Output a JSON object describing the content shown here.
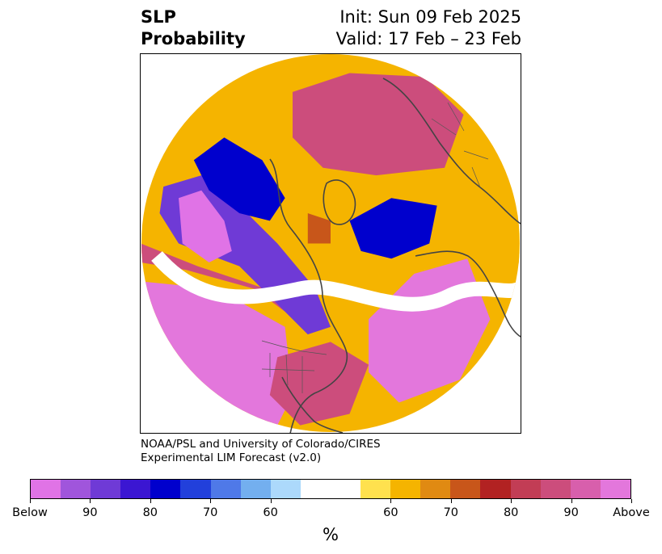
{
  "title": {
    "variable": "SLP",
    "product": "Probability",
    "init": "Init: Sun 09 Feb 2025",
    "valid": "Valid: 17 Feb – 23 Feb"
  },
  "credit": {
    "line1": "NOAA/PSL and University of Colorado/CIRES",
    "line2": "Experimental LIM Forecast (v2.0)"
  },
  "colorbar": {
    "colors": [
      "#e073e6",
      "#a055dc",
      "#6f3ad6",
      "#3b16d2",
      "#0000cd",
      "#2240db",
      "#4f79e8",
      "#73afef",
      "#acd9fb",
      "#ffffff",
      "#ffffff",
      "#ffe14e",
      "#f5b400",
      "#e08a12",
      "#c8561a",
      "#b22222",
      "#c23d55",
      "#cc4d7c",
      "#d85fac",
      "#e377dc"
    ],
    "ticks": [
      "Below",
      "90",
      "80",
      "70",
      "60",
      "60",
      "70",
      "80",
      "90",
      "Above"
    ],
    "unit": "%"
  },
  "map": {
    "projection": "north-polar-stereographic",
    "background": "#ffffff",
    "coastline_color": "#444444",
    "regions": [
      {
        "name": "north-pacific-above-high",
        "color": "#e377dc",
        "pts": [
          [
            0.0,
            0.85
          ],
          [
            0.0,
            0.6
          ],
          [
            0.2,
            0.62
          ],
          [
            0.38,
            0.72
          ],
          [
            0.4,
            0.9
          ],
          [
            0.35,
            1.0
          ],
          [
            0.0,
            1.0
          ]
        ]
      },
      {
        "name": "pacific-pink-band",
        "color": "#cc4d7c",
        "pts": [
          [
            0.0,
            0.55
          ],
          [
            0.12,
            0.57
          ],
          [
            0.3,
            0.62
          ],
          [
            0.38,
            0.68
          ],
          [
            0.33,
            0.62
          ],
          [
            0.15,
            0.56
          ],
          [
            0.0,
            0.5
          ]
        ]
      },
      {
        "name": "canada-below-low",
        "color": "#6f3ad6",
        "pts": [
          [
            0.06,
            0.35
          ],
          [
            0.16,
            0.32
          ],
          [
            0.26,
            0.4
          ],
          [
            0.36,
            0.5
          ],
          [
            0.46,
            0.62
          ],
          [
            0.5,
            0.72
          ],
          [
            0.44,
            0.74
          ],
          [
            0.36,
            0.66
          ],
          [
            0.26,
            0.56
          ],
          [
            0.1,
            0.5
          ],
          [
            0.05,
            0.42
          ]
        ]
      },
      {
        "name": "alaska-below-core",
        "color": "#e073e6",
        "pts": [
          [
            0.1,
            0.38
          ],
          [
            0.16,
            0.36
          ],
          [
            0.22,
            0.44
          ],
          [
            0.24,
            0.52
          ],
          [
            0.18,
            0.55
          ],
          [
            0.11,
            0.5
          ]
        ]
      },
      {
        "name": "greenland-ring-blue",
        "color": "#0000cd",
        "pts": [
          [
            0.14,
            0.28
          ],
          [
            0.22,
            0.22
          ],
          [
            0.32,
            0.28
          ],
          [
            0.38,
            0.38
          ],
          [
            0.34,
            0.44
          ],
          [
            0.26,
            0.42
          ],
          [
            0.18,
            0.36
          ]
        ]
      },
      {
        "name": "arctic-above",
        "color": "#c8561a",
        "pts": [
          [
            0.44,
            0.42
          ],
          [
            0.5,
            0.44
          ],
          [
            0.5,
            0.5
          ],
          [
            0.44,
            0.5
          ]
        ]
      },
      {
        "name": "siberia-below-low",
        "color": "#0000cd",
        "pts": [
          [
            0.55,
            0.44
          ],
          [
            0.66,
            0.38
          ],
          [
            0.78,
            0.4
          ],
          [
            0.76,
            0.5
          ],
          [
            0.66,
            0.54
          ],
          [
            0.58,
            0.52
          ]
        ]
      },
      {
        "name": "europe-above-high",
        "color": "#cc4d7c",
        "pts": [
          [
            0.4,
            0.1
          ],
          [
            0.55,
            0.05
          ],
          [
            0.75,
            0.06
          ],
          [
            0.85,
            0.16
          ],
          [
            0.8,
            0.3
          ],
          [
            0.62,
            0.32
          ],
          [
            0.48,
            0.3
          ],
          [
            0.4,
            0.22
          ]
        ]
      },
      {
        "name": "atlantic-above-high",
        "color": "#e377dc",
        "pts": [
          [
            0.6,
            0.7
          ],
          [
            0.72,
            0.58
          ],
          [
            0.86,
            0.54
          ],
          [
            0.92,
            0.7
          ],
          [
            0.84,
            0.86
          ],
          [
            0.68,
            0.92
          ],
          [
            0.6,
            0.84
          ]
        ]
      },
      {
        "name": "asia-yellow-fringe",
        "color": "#f5b400",
        "pts": [
          [
            0.86,
            0.4
          ],
          [
            0.98,
            0.38
          ],
          [
            1.0,
            0.55
          ],
          [
            0.92,
            0.6
          ],
          [
            0.84,
            0.52
          ]
        ]
      },
      {
        "name": "us-above-pink",
        "color": "#cc4d7c",
        "pts": [
          [
            0.36,
            0.8
          ],
          [
            0.5,
            0.76
          ],
          [
            0.6,
            0.82
          ],
          [
            0.55,
            0.95
          ],
          [
            0.42,
            0.98
          ],
          [
            0.34,
            0.9
          ]
        ]
      }
    ]
  }
}
